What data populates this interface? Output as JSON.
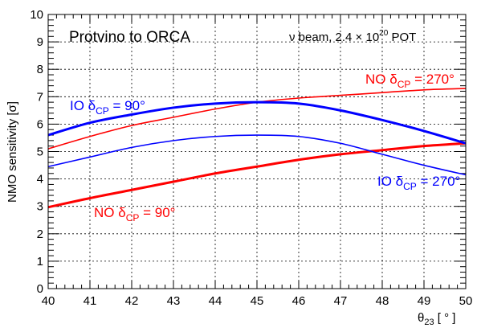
{
  "chart_data": {
    "type": "line",
    "title": "Protvino to ORCA",
    "beam_label": {
      "pre": "ν beam, 2.4 × 10",
      "exp": "20",
      "post": " POT"
    },
    "ylabel": "NMO sensitivity [σ]",
    "xlabel": {
      "theta": "θ",
      "sub": "23",
      "rest": " [ ° ]"
    },
    "xlim": [
      40,
      50
    ],
    "ylim": [
      0,
      10
    ],
    "x_ticks": [
      "40",
      "41",
      "42",
      "43",
      "44",
      "45",
      "46",
      "47",
      "48",
      "49",
      "50"
    ],
    "y_ticks": [
      "0",
      "1",
      "2",
      "3",
      "4",
      "5",
      "6",
      "7",
      "8",
      "9",
      "10"
    ],
    "grid": true,
    "series": [
      {
        "name": "NO δCP = 270°",
        "label": {
          "pre": "NO δ",
          "sub": "CP",
          "post": " = 270°"
        },
        "color": "#ff0000",
        "width": "thin",
        "x": [
          40,
          41,
          42,
          43,
          44,
          45,
          46,
          47,
          48,
          49,
          50
        ],
        "y": [
          5.1,
          5.55,
          5.95,
          6.25,
          6.55,
          6.8,
          6.95,
          7.05,
          7.15,
          7.25,
          7.3
        ]
      },
      {
        "name": "NO δCP = 90°",
        "label": {
          "pre": "NO δ",
          "sub": "CP",
          "post": " = 90°"
        },
        "color": "#ff0000",
        "width": "thick",
        "x": [
          40,
          41,
          42,
          43,
          44,
          45,
          46,
          47,
          48,
          49,
          50
        ],
        "y": [
          2.97,
          3.3,
          3.6,
          3.9,
          4.2,
          4.45,
          4.7,
          4.9,
          5.05,
          5.2,
          5.3
        ]
      },
      {
        "name": "IO δCP = 90°",
        "label": {
          "pre": "IO δ",
          "sub": "CP",
          "post": " = 90°"
        },
        "color": "#0000ff",
        "width": "thick",
        "x": [
          40,
          41,
          42,
          43,
          44,
          45,
          46,
          47,
          48,
          49,
          50
        ],
        "y": [
          5.6,
          6.05,
          6.35,
          6.6,
          6.75,
          6.8,
          6.75,
          6.5,
          6.15,
          5.75,
          5.3
        ]
      },
      {
        "name": "IO δCP = 270°",
        "label": {
          "pre": "IO δ",
          "sub": "CP",
          "post": " = 270°"
        },
        "color": "#0000ff",
        "width": "thin",
        "x": [
          40,
          41,
          42,
          43,
          44,
          45,
          46,
          47,
          48,
          49,
          50
        ],
        "y": [
          4.45,
          4.8,
          5.15,
          5.4,
          5.55,
          5.6,
          5.55,
          5.3,
          4.9,
          4.5,
          4.15
        ]
      }
    ]
  }
}
